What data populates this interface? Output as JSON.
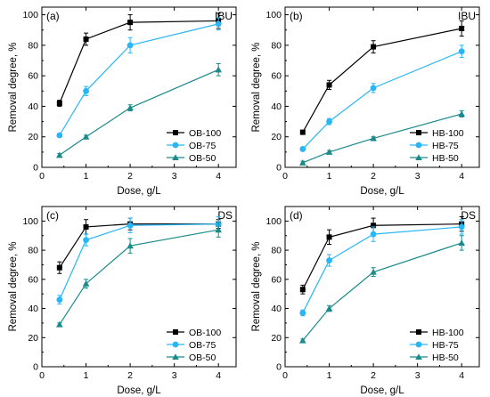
{
  "axis_text": {
    "xlabel": "Dose, g/L",
    "ylabel": "Removal degree, %"
  },
  "chart_data": [
    {
      "type": "line",
      "panel": "(a)",
      "title": "IBU",
      "xlabel": "Dose, g/L",
      "ylabel": "Removal degree, %",
      "xlim": [
        0,
        4.4
      ],
      "ylim": [
        0,
        105
      ],
      "xticks": [
        0,
        1,
        2,
        3,
        4
      ],
      "yticks": [
        0,
        20,
        40,
        60,
        80,
        100
      ],
      "legend_position": "bottom-right",
      "grid": false,
      "x": [
        0.4,
        1,
        2,
        4
      ],
      "series": [
        {
          "name": "OB-100",
          "marker": "square",
          "color": "#000000",
          "values": [
            42,
            84,
            95,
            96
          ],
          "errors": [
            2,
            4,
            5,
            5
          ]
        },
        {
          "name": "OB-75",
          "marker": "circle",
          "color": "#29b6f6",
          "values": [
            21,
            50,
            80,
            94
          ],
          "errors": [
            1,
            3,
            5,
            4
          ]
        },
        {
          "name": "OB-50",
          "marker": "triangle",
          "color": "#1a8a8a",
          "values": [
            8,
            20,
            39,
            64
          ],
          "errors": [
            1,
            1,
            2,
            4
          ]
        }
      ]
    },
    {
      "type": "line",
      "panel": "(b)",
      "title": "IBU",
      "xlabel": "Dose, g/L",
      "ylabel": "Removal degree, %",
      "xlim": [
        0,
        4.4
      ],
      "ylim": [
        0,
        105
      ],
      "xticks": [
        0,
        1,
        2,
        3,
        4
      ],
      "yticks": [
        0,
        20,
        40,
        60,
        80,
        100
      ],
      "legend_position": "bottom-right",
      "grid": false,
      "x": [
        0.4,
        1,
        2,
        4
      ],
      "series": [
        {
          "name": "HB-100",
          "marker": "square",
          "color": "#000000",
          "values": [
            23,
            54,
            79,
            91
          ],
          "errors": [
            1,
            3,
            4,
            5
          ]
        },
        {
          "name": "HB-75",
          "marker": "circle",
          "color": "#29b6f6",
          "values": [
            12,
            30,
            52,
            76
          ],
          "errors": [
            1,
            2,
            3,
            4
          ]
        },
        {
          "name": "HB-50",
          "marker": "triangle",
          "color": "#1a8a8a",
          "values": [
            3,
            10,
            19,
            35
          ],
          "errors": [
            1,
            1,
            1,
            2
          ]
        }
      ]
    },
    {
      "type": "line",
      "panel": "(c)",
      "title": "DS",
      "xlabel": "Dose, g/L",
      "ylabel": "Removal degree, %",
      "xlim": [
        0,
        4.4
      ],
      "ylim": [
        0,
        110
      ],
      "xticks": [
        0,
        1,
        2,
        3,
        4
      ],
      "yticks": [
        0,
        20,
        40,
        60,
        80,
        100
      ],
      "legend_position": "bottom-right",
      "grid": false,
      "x": [
        0.4,
        1,
        2,
        4
      ],
      "series": [
        {
          "name": "OB-100",
          "marker": "square",
          "color": "#000000",
          "values": [
            68,
            96,
            98,
            98
          ],
          "errors": [
            4,
            5,
            4,
            3
          ]
        },
        {
          "name": "OB-75",
          "marker": "circle",
          "color": "#29b6f6",
          "values": [
            46,
            87,
            97,
            98
          ],
          "errors": [
            3,
            4,
            5,
            5
          ]
        },
        {
          "name": "OB-50",
          "marker": "triangle",
          "color": "#1a8a8a",
          "values": [
            29,
            57,
            83,
            94
          ],
          "errors": [
            1,
            3,
            5,
            5
          ]
        }
      ]
    },
    {
      "type": "line",
      "panel": "(d)",
      "title": "DS",
      "xlabel": "Dose, g/L",
      "ylabel": "Removal degree, %",
      "xlim": [
        0,
        4.4
      ],
      "ylim": [
        0,
        110
      ],
      "xticks": [
        0,
        1,
        2,
        3,
        4
      ],
      "yticks": [
        0,
        20,
        40,
        60,
        80,
        100
      ],
      "legend_position": "bottom-right",
      "grid": false,
      "x": [
        0.4,
        1,
        2,
        4
      ],
      "series": [
        {
          "name": "HB-100",
          "marker": "square",
          "color": "#000000",
          "values": [
            53,
            89,
            97,
            98
          ],
          "errors": [
            3,
            5,
            5,
            5
          ]
        },
        {
          "name": "HB-75",
          "marker": "circle",
          "color": "#29b6f6",
          "values": [
            37,
            73,
            91,
            96
          ],
          "errors": [
            2,
            4,
            5,
            5
          ]
        },
        {
          "name": "HB-50",
          "marker": "triangle",
          "color": "#1a8a8a",
          "values": [
            18,
            40,
            65,
            85
          ],
          "errors": [
            1,
            2,
            3,
            5
          ]
        }
      ]
    }
  ]
}
